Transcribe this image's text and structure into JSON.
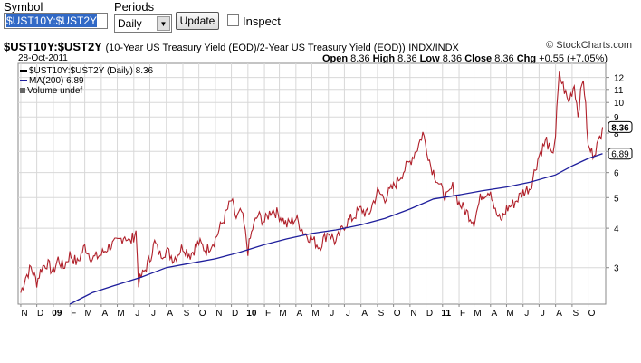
{
  "toolbar": {
    "symbol_label": "Symbol",
    "symbol_value": "$UST10Y:$UST2Y",
    "periods_label": "Periods",
    "periods_value": "Daily",
    "update_label": "Update",
    "inspect_label": "Inspect"
  },
  "header": {
    "symbol": "$UST10Y:$UST2Y",
    "description": "(10-Year US Treasury Yield (EOD)/2-Year US Treasury Yield (EOD))",
    "exchange": "INDX/INDX",
    "brand": "© StockCharts.com",
    "date": "28-Oct-2011",
    "open_label": "Open",
    "open": "8.36",
    "high_label": "High",
    "high": "8.36",
    "low_label": "Low",
    "low": "8.36",
    "close_label": "Close",
    "close": "8.36",
    "chg_label": "Chg",
    "chg": "+0.55 (+7.05%)"
  },
  "legend": {
    "price": "$UST10Y:$UST2Y (Daily) 8.36",
    "ma": "MA(200) 6.89",
    "volume": "Volume undef"
  },
  "colors": {
    "price": "#b0202a",
    "ma": "#1e1e9c",
    "grid": "#d8d8d8"
  },
  "chart_data": {
    "type": "line",
    "scale": "log",
    "ylim": [
      2.3,
      13.3
    ],
    "y_ticks": [
      3,
      4,
      5,
      6,
      7,
      8,
      9,
      10,
      11,
      12
    ],
    "last_value_tags": [
      "8.36",
      "6.89"
    ],
    "x_ticks": [
      "N",
      "D",
      "09",
      "F",
      "M",
      "A",
      "M",
      "J",
      "J",
      "A",
      "S",
      "O",
      "N",
      "D",
      "10",
      "F",
      "M",
      "A",
      "M",
      "J",
      "J",
      "A",
      "S",
      "O",
      "N",
      "D",
      "11",
      "F",
      "M",
      "A",
      "M",
      "J",
      "J",
      "A",
      "S",
      "O"
    ],
    "price_series": [
      [
        "2008-11-01",
        2.5
      ],
      [
        "2008-11-10",
        2.8
      ],
      [
        "2008-11-20",
        3.0
      ],
      [
        "2008-12-01",
        2.7
      ],
      [
        "2008-12-10",
        3.0
      ],
      [
        "2008-12-20",
        3.1
      ],
      [
        "2009-01-01",
        2.9
      ],
      [
        "2009-01-10",
        3.2
      ],
      [
        "2009-01-20",
        3.0
      ],
      [
        "2009-02-01",
        3.3
      ],
      [
        "2009-02-15",
        3.1
      ],
      [
        "2009-03-01",
        3.5
      ],
      [
        "2009-03-15",
        3.2
      ],
      [
        "2009-04-01",
        3.3
      ],
      [
        "2009-04-15",
        3.5
      ],
      [
        "2009-05-01",
        3.6
      ],
      [
        "2009-05-15",
        3.8
      ],
      [
        "2009-05-25",
        3.6
      ],
      [
        "2009-06-05",
        3.9
      ],
      [
        "2009-06-10",
        2.7
      ],
      [
        "2009-06-20",
        2.9
      ],
      [
        "2009-07-01",
        3.2
      ],
      [
        "2009-07-10",
        3.6
      ],
      [
        "2009-07-20",
        3.3
      ],
      [
        "2009-08-01",
        3.4
      ],
      [
        "2009-08-15",
        3.2
      ],
      [
        "2009-09-01",
        3.5
      ],
      [
        "2009-09-15",
        3.3
      ],
      [
        "2009-10-01",
        3.6
      ],
      [
        "2009-10-15",
        3.4
      ],
      [
        "2009-11-01",
        3.7
      ],
      [
        "2009-11-15",
        4.2
      ],
      [
        "2009-12-01",
        4.9
      ],
      [
        "2009-12-10",
        4.3
      ],
      [
        "2009-12-20",
        4.5
      ],
      [
        "2010-01-01",
        3.4
      ],
      [
        "2010-01-10",
        4.0
      ],
      [
        "2010-01-20",
        4.4
      ],
      [
        "2010-02-01",
        4.2
      ],
      [
        "2010-02-15",
        4.6
      ],
      [
        "2010-03-01",
        4.4
      ],
      [
        "2010-03-15",
        4.1
      ],
      [
        "2010-04-01",
        4.3
      ],
      [
        "2010-04-15",
        3.9
      ],
      [
        "2010-05-01",
        3.7
      ],
      [
        "2010-05-15",
        3.5
      ],
      [
        "2010-06-01",
        3.9
      ],
      [
        "2010-06-15",
        3.6
      ],
      [
        "2010-07-01",
        4.1
      ],
      [
        "2010-07-15",
        4.3
      ],
      [
        "2010-08-01",
        4.6
      ],
      [
        "2010-08-15",
        4.4
      ],
      [
        "2010-09-01",
        5.2
      ],
      [
        "2010-09-15",
        5.0
      ],
      [
        "2010-10-01",
        5.4
      ],
      [
        "2010-10-15",
        5.9
      ],
      [
        "2010-11-01",
        6.5
      ],
      [
        "2010-11-15",
        7.2
      ],
      [
        "2010-11-25",
        8.0
      ],
      [
        "2010-12-10",
        6.3
      ],
      [
        "2010-12-20",
        5.8
      ],
      [
        "2011-01-01",
        5.2
      ],
      [
        "2011-01-10",
        5.0
      ],
      [
        "2011-01-20",
        5.4
      ],
      [
        "2011-02-01",
        4.8
      ],
      [
        "2011-02-15",
        4.5
      ],
      [
        "2011-03-01",
        4.2
      ],
      [
        "2011-03-15",
        5.1
      ],
      [
        "2011-04-01",
        5.3
      ],
      [
        "2011-04-10",
        4.5
      ],
      [
        "2011-04-20",
        4.2
      ],
      [
        "2011-05-01",
        4.6
      ],
      [
        "2011-05-15",
        4.8
      ],
      [
        "2011-06-01",
        5.2
      ],
      [
        "2011-06-15",
        5.4
      ],
      [
        "2011-07-01",
        6.8
      ],
      [
        "2011-07-15",
        7.6
      ],
      [
        "2011-07-25",
        6.7
      ],
      [
        "2011-08-01",
        7.9
      ],
      [
        "2011-08-08",
        12.2
      ],
      [
        "2011-08-15",
        11.3
      ],
      [
        "2011-08-25",
        10.0
      ],
      [
        "2011-09-05",
        11.4
      ],
      [
        "2011-09-12",
        9.2
      ],
      [
        "2011-09-22",
        12.0
      ],
      [
        "2011-10-01",
        7.2
      ],
      [
        "2011-10-10",
        6.9
      ],
      [
        "2011-10-20",
        7.4
      ],
      [
        "2011-10-28",
        8.36
      ]
    ],
    "ma_series": [
      [
        "2009-02-01",
        2.3
      ],
      [
        "2009-03-15",
        2.5
      ],
      [
        "2009-05-01",
        2.65
      ],
      [
        "2009-06-15",
        2.8
      ],
      [
        "2009-08-01",
        3.0
      ],
      [
        "2009-09-15",
        3.1
      ],
      [
        "2009-11-01",
        3.2
      ],
      [
        "2009-12-15",
        3.35
      ],
      [
        "2010-02-01",
        3.55
      ],
      [
        "2010-03-15",
        3.7
      ],
      [
        "2010-05-01",
        3.85
      ],
      [
        "2010-06-15",
        3.95
      ],
      [
        "2010-08-01",
        4.1
      ],
      [
        "2010-09-15",
        4.3
      ],
      [
        "2010-11-01",
        4.6
      ],
      [
        "2010-12-15",
        4.95
      ],
      [
        "2011-02-01",
        5.1
      ],
      [
        "2011-03-15",
        5.25
      ],
      [
        "2011-05-01",
        5.4
      ],
      [
        "2011-06-15",
        5.6
      ],
      [
        "2011-08-01",
        5.9
      ],
      [
        "2011-09-01",
        6.3
      ],
      [
        "2011-10-01",
        6.65
      ],
      [
        "2011-10-28",
        6.89
      ]
    ]
  }
}
